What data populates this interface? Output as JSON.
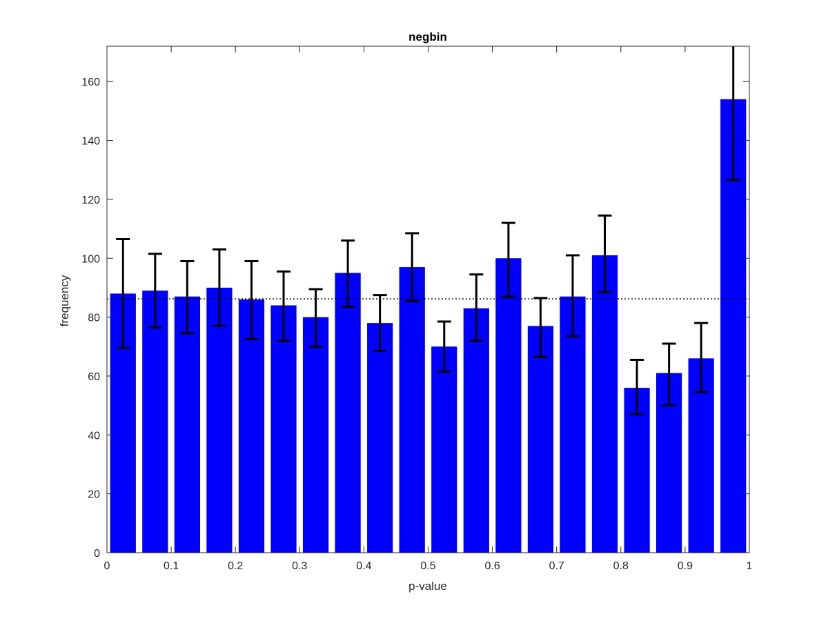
{
  "chart_data": {
    "type": "bar",
    "title": "negbin",
    "xlabel": "p-value",
    "ylabel": "frequency",
    "xlim": [
      0,
      1
    ],
    "ylim": [
      0,
      172
    ],
    "xticks": [
      0,
      0.1,
      0.2,
      0.3,
      0.4,
      0.5,
      0.6,
      0.7,
      0.8,
      0.9,
      1
    ],
    "xtick_labels": [
      "0",
      "0.1",
      "0.2",
      "0.3",
      "0.4",
      "0.5",
      "0.6",
      "0.7",
      "0.8",
      "0.9",
      "1"
    ],
    "yticks": [
      0,
      20,
      40,
      60,
      80,
      100,
      120,
      140,
      160
    ],
    "ytick_labels": [
      "0",
      "20",
      "40",
      "60",
      "80",
      "100",
      "120",
      "140",
      "160"
    ],
    "bin_width": 0.05,
    "x": [
      0.025,
      0.075,
      0.125,
      0.175,
      0.225,
      0.275,
      0.325,
      0.375,
      0.425,
      0.475,
      0.525,
      0.575,
      0.625,
      0.675,
      0.725,
      0.775,
      0.825,
      0.875,
      0.925,
      0.975
    ],
    "values": [
      88,
      89,
      87,
      90,
      86,
      84,
      80,
      95,
      78,
      97,
      70,
      83,
      100,
      77,
      87,
      101,
      56,
      61,
      66,
      154
    ],
    "error_lower": [
      69.5,
      76.5,
      74.5,
      77,
      72.5,
      72,
      70,
      83.5,
      68.5,
      85.5,
      61.5,
      72,
      87,
      66.5,
      73.5,
      88.5,
      47,
      50,
      54.5,
      126.5
    ],
    "error_upper": [
      106.5,
      101.5,
      99,
      103,
      99,
      95.5,
      89.5,
      106,
      87.5,
      108.5,
      78.5,
      94.5,
      112,
      86.5,
      101,
      114.5,
      65.5,
      71,
      78,
      176
    ],
    "reference_line": 86.2,
    "grid": false,
    "bar_color": "#0000ff",
    "error_bar_color": "#000000",
    "reference_line_color": "#000000"
  }
}
